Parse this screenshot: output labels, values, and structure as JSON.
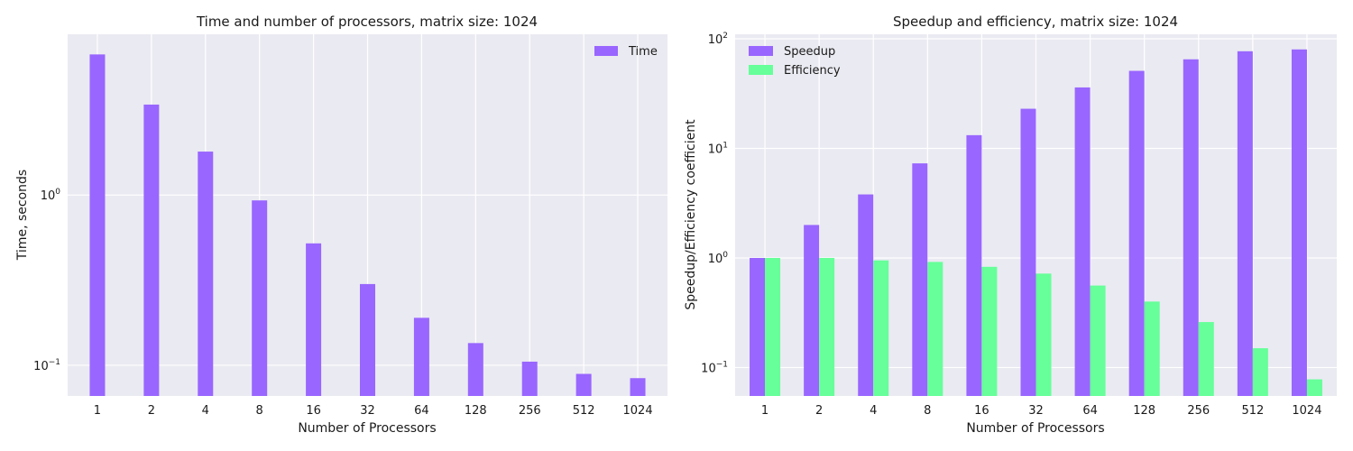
{
  "chart_data": [
    {
      "type": "bar",
      "title": "Time and number of processors, matrix size: 1024",
      "xlabel": "Number of Processors",
      "ylabel": "Time, seconds",
      "yscale": "log",
      "ylim": [
        0.066,
        8.8
      ],
      "yticks": [
        {
          "base": "10",
          "exp": "0",
          "value": 1
        },
        {
          "base": "10",
          "exp": "−1",
          "value": 0.1
        }
      ],
      "categories": [
        "1",
        "2",
        "4",
        "8",
        "16",
        "32",
        "64",
        "128",
        "256",
        "512",
        "1024"
      ],
      "series": [
        {
          "name": "Time",
          "color": "#9966ff",
          "values": [
            6.7,
            3.4,
            1.8,
            0.93,
            0.52,
            0.3,
            0.19,
            0.135,
            0.105,
            0.089,
            0.084
          ]
        }
      ],
      "legend": "top-right",
      "grid": true
    },
    {
      "type": "bar",
      "title": "Speedup and efficiency, matrix size: 1024",
      "xlabel": "Number of Processors",
      "ylabel": "Speedup/Efficiency coefficient",
      "yscale": "log",
      "ylim": [
        0.055,
        110
      ],
      "yticks": [
        {
          "base": "10",
          "exp": "2",
          "value": 100
        },
        {
          "base": "10",
          "exp": "1",
          "value": 10
        },
        {
          "base": "10",
          "exp": "0",
          "value": 1
        },
        {
          "base": "10",
          "exp": "−1",
          "value": 0.1
        }
      ],
      "categories": [
        "1",
        "2",
        "4",
        "8",
        "16",
        "32",
        "64",
        "128",
        "256",
        "512",
        "1024"
      ],
      "series": [
        {
          "name": "Speedup",
          "color": "#9966ff",
          "values": [
            1.0,
            2.0,
            3.8,
            7.3,
            13.2,
            23.0,
            36.0,
            51.0,
            65.0,
            77.0,
            80.0
          ]
        },
        {
          "name": "Efficiency",
          "color": "#66ff99",
          "values": [
            1.0,
            1.0,
            0.95,
            0.92,
            0.83,
            0.72,
            0.56,
            0.4,
            0.26,
            0.15,
            0.078
          ]
        }
      ],
      "legend": "top-left",
      "grid": true
    }
  ]
}
